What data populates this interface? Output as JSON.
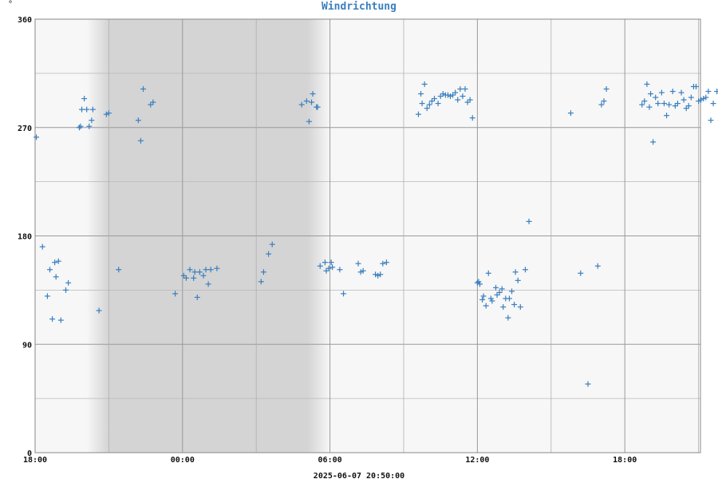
{
  "chart_data": {
    "type": "scatter",
    "title": "Windrichtung",
    "y_unit": "°",
    "timestamp": "2025-06-07 20:50:00",
    "ylim": [
      0,
      360
    ],
    "y_ticks": [
      0,
      90,
      180,
      270,
      360
    ],
    "x_range_hours": [
      18,
      45.1
    ],
    "x_ticks": [
      {
        "h": 18,
        "label": "18:00"
      },
      {
        "h": 24,
        "label": "00:00"
      },
      {
        "h": 30,
        "label": "06:00"
      },
      {
        "h": 36,
        "label": "12:00"
      },
      {
        "h": 42,
        "label": "18:00"
      }
    ],
    "grid": true,
    "marker": "+",
    "colors": {
      "series": "#3a7fbf",
      "title": "#3a7fbf",
      "night": "#d4d4d4",
      "plot_bg": "#f7f7f7",
      "grid": "#aaaaaa"
    },
    "night_band": [
      21,
      30
    ],
    "series": [
      {
        "points": [
          [
            18.05,
            262
          ],
          [
            18.3,
            171
          ],
          [
            18.5,
            130
          ],
          [
            18.6,
            152
          ],
          [
            18.7,
            111
          ],
          [
            18.8,
            158
          ],
          [
            18.85,
            146
          ],
          [
            18.95,
            159
          ],
          [
            19.05,
            110
          ],
          [
            19.25,
            135
          ],
          [
            19.35,
            141
          ],
          [
            19.8,
            270
          ],
          [
            19.85,
            271
          ],
          [
            19.9,
            285
          ],
          [
            20.0,
            294
          ],
          [
            20.1,
            285
          ],
          [
            20.2,
            271
          ],
          [
            20.3,
            276
          ],
          [
            20.35,
            285
          ],
          [
            20.6,
            118
          ],
          [
            20.9,
            281
          ],
          [
            21.0,
            282
          ],
          [
            21.4,
            152
          ],
          [
            22.2,
            276
          ],
          [
            22.3,
            259
          ],
          [
            22.4,
            302
          ],
          [
            22.7,
            289
          ],
          [
            22.8,
            291
          ],
          [
            23.7,
            132
          ],
          [
            24.05,
            147
          ],
          [
            24.15,
            145
          ],
          [
            24.3,
            152
          ],
          [
            24.45,
            145
          ],
          [
            24.5,
            150
          ],
          [
            24.6,
            129
          ],
          [
            24.7,
            150
          ],
          [
            24.85,
            147
          ],
          [
            24.95,
            152
          ],
          [
            25.05,
            140
          ],
          [
            25.15,
            152
          ],
          [
            25.4,
            153
          ],
          [
            27.2,
            142
          ],
          [
            27.3,
            150
          ],
          [
            27.5,
            165
          ],
          [
            27.65,
            173
          ],
          [
            28.85,
            289
          ],
          [
            29.05,
            292
          ],
          [
            29.15,
            275
          ],
          [
            29.25,
            291
          ],
          [
            29.3,
            298
          ],
          [
            29.45,
            287
          ],
          [
            29.5,
            287
          ],
          [
            29.6,
            155
          ],
          [
            29.8,
            158
          ],
          [
            29.85,
            151
          ],
          [
            29.95,
            153
          ],
          [
            30.05,
            158
          ],
          [
            30.1,
            154
          ],
          [
            30.4,
            152
          ],
          [
            30.55,
            132
          ],
          [
            31.15,
            157
          ],
          [
            31.25,
            150
          ],
          [
            31.35,
            151
          ],
          [
            31.85,
            148
          ],
          [
            31.95,
            147
          ],
          [
            32.05,
            148
          ],
          [
            32.15,
            157
          ],
          [
            32.3,
            158
          ],
          [
            33.6,
            281
          ],
          [
            33.7,
            298
          ],
          [
            33.75,
            290
          ],
          [
            33.85,
            306
          ],
          [
            33.95,
            286
          ],
          [
            34.05,
            289
          ],
          [
            34.15,
            292
          ],
          [
            34.25,
            294
          ],
          [
            34.4,
            290
          ],
          [
            34.5,
            296
          ],
          [
            34.6,
            298
          ],
          [
            34.7,
            297
          ],
          [
            34.8,
            297
          ],
          [
            34.9,
            296
          ],
          [
            35.0,
            297
          ],
          [
            35.1,
            299
          ],
          [
            35.2,
            293
          ],
          [
            35.3,
            302
          ],
          [
            35.4,
            296
          ],
          [
            35.5,
            302
          ],
          [
            35.6,
            291
          ],
          [
            35.7,
            293
          ],
          [
            35.8,
            278
          ],
          [
            36.0,
            141
          ],
          [
            36.05,
            142
          ],
          [
            36.1,
            140
          ],
          [
            36.2,
            127
          ],
          [
            36.25,
            130
          ],
          [
            36.35,
            122
          ],
          [
            36.45,
            149
          ],
          [
            36.55,
            128
          ],
          [
            36.6,
            126
          ],
          [
            36.75,
            137
          ],
          [
            36.8,
            131
          ],
          [
            36.9,
            133
          ],
          [
            37.0,
            136
          ],
          [
            37.05,
            121
          ],
          [
            37.15,
            128
          ],
          [
            37.25,
            112
          ],
          [
            37.3,
            128
          ],
          [
            37.4,
            134
          ],
          [
            37.5,
            123
          ],
          [
            37.55,
            150
          ],
          [
            37.65,
            143
          ],
          [
            37.75,
            121
          ],
          [
            37.95,
            152
          ],
          [
            38.1,
            192
          ],
          [
            39.8,
            282
          ],
          [
            40.2,
            149
          ],
          [
            40.5,
            57
          ],
          [
            40.9,
            155
          ],
          [
            41.05,
            289
          ],
          [
            41.15,
            292
          ],
          [
            41.25,
            302
          ],
          [
            42.7,
            289
          ],
          [
            42.8,
            292
          ],
          [
            42.9,
            306
          ],
          [
            43.0,
            287
          ],
          [
            43.05,
            298
          ],
          [
            43.15,
            258
          ],
          [
            43.25,
            295
          ],
          [
            43.35,
            290
          ],
          [
            43.5,
            299
          ],
          [
            43.6,
            290
          ],
          [
            43.7,
            280
          ],
          [
            43.8,
            289
          ],
          [
            43.95,
            300
          ],
          [
            44.05,
            288
          ],
          [
            44.15,
            290
          ],
          [
            44.3,
            299
          ],
          [
            44.4,
            293
          ],
          [
            44.5,
            286
          ],
          [
            44.6,
            288
          ],
          [
            44.7,
            295
          ],
          [
            44.8,
            304
          ],
          [
            44.9,
            304
          ],
          [
            45.0,
            292
          ],
          [
            45.1,
            293
          ],
          [
            45.2,
            294
          ],
          [
            45.3,
            295
          ],
          [
            45.4,
            300
          ],
          [
            45.5,
            276
          ],
          [
            45.6,
            290
          ],
          [
            45.75,
            300
          ],
          [
            45.9,
            276
          ],
          [
            46.05,
            292
          ],
          [
            46.2,
            285
          ]
        ]
      }
    ]
  }
}
